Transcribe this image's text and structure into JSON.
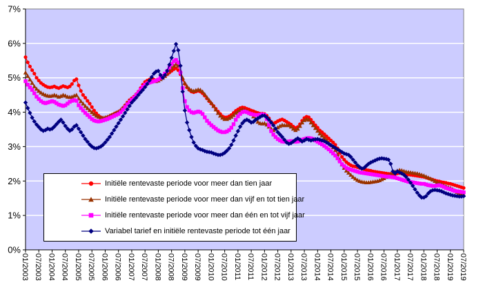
{
  "chart_data": {
    "type": "line",
    "title": "",
    "ylabel": "",
    "xlabel": "",
    "ylim": [
      0,
      7
    ],
    "grid": "horizontal-white",
    "plot_bg_color": "#CCCCFF",
    "grid_color": "#FFFFFF",
    "axis_color": "#000000",
    "border_color": "#808080",
    "legend_position": "bottom-left-overlay",
    "x_unit": "month",
    "x_start": "01/2003",
    "x_end": "07/2019",
    "y_tick_labels": [
      "0%",
      "1%",
      "2%",
      "3%",
      "4%",
      "5%",
      "6%",
      "7%"
    ],
    "x_tick_labels": [
      "01/2003",
      "07/2003",
      "01/2004",
      "07/2004",
      "01/2005",
      "07/2005",
      "01/2006",
      "07/2006",
      "01/2007",
      "07/2007",
      "01/2008",
      "07/2008",
      "01/2009",
      "07/2009",
      "01/2010",
      "07/2010",
      "01/2011",
      "07/2011",
      "01/2012",
      "07/2012",
      "01/2013",
      "07/2013",
      "01/2014",
      "07/2014",
      "01/2015",
      "07/2015",
      "01/2016",
      "07/2016",
      "01/2017",
      "07/2017",
      "01/2018",
      "07/2018",
      "01/2019",
      "07/2019"
    ],
    "series": [
      {
        "name": "Initiële rentevaste periode voor meer dan tien jaar",
        "color": "#FF0000",
        "marker": "circle",
        "values": [
          5.6,
          5.45,
          5.33,
          5.22,
          5.12,
          5.0,
          4.92,
          4.85,
          4.8,
          4.76,
          4.73,
          4.72,
          4.73,
          4.75,
          4.72,
          4.7,
          4.73,
          4.76,
          4.74,
          4.72,
          4.75,
          4.82,
          4.92,
          4.96,
          4.78,
          4.62,
          4.5,
          4.42,
          4.33,
          4.25,
          4.15,
          4.05,
          3.97,
          3.9,
          3.85,
          3.82,
          3.83,
          3.85,
          3.88,
          3.92,
          3.95,
          3.98,
          4.01,
          4.05,
          4.12,
          4.2,
          4.28,
          4.35,
          4.4,
          4.45,
          4.52,
          4.6,
          4.7,
          4.8,
          4.88,
          4.92,
          4.95,
          4.97,
          4.95,
          4.93,
          4.95,
          5.0,
          5.02,
          5.05,
          5.1,
          5.15,
          5.2,
          5.25,
          5.28,
          5.22,
          5.1,
          4.95,
          4.82,
          4.72,
          4.65,
          4.6,
          4.58,
          4.6,
          4.62,
          4.6,
          4.55,
          4.48,
          4.4,
          4.32,
          4.25,
          4.18,
          4.1,
          4.02,
          3.95,
          3.88,
          3.85,
          3.85,
          3.88,
          3.92,
          3.98,
          4.04,
          4.08,
          4.12,
          4.14,
          4.13,
          4.1,
          4.08,
          4.05,
          4.03,
          4.0,
          3.98,
          3.96,
          3.96,
          3.95,
          3.9,
          3.82,
          3.72,
          3.67,
          3.7,
          3.74,
          3.77,
          3.79,
          3.76,
          3.72,
          3.68,
          3.64,
          3.58,
          3.54,
          3.57,
          3.65,
          3.75,
          3.83,
          3.87,
          3.85,
          3.78,
          3.7,
          3.62,
          3.55,
          3.47,
          3.42,
          3.36,
          3.3,
          3.24,
          3.18,
          3.12,
          3.05,
          2.95,
          2.82,
          2.7,
          2.62,
          2.55,
          2.5,
          2.46,
          2.43,
          2.42,
          2.4,
          2.38,
          2.36,
          2.34,
          2.32,
          2.31,
          2.3,
          2.28,
          2.27,
          2.26,
          2.25,
          2.24,
          2.23,
          2.22,
          2.21,
          2.21,
          2.2,
          2.2,
          2.22,
          2.23,
          2.22,
          2.21,
          2.2,
          2.19,
          2.18,
          2.17,
          2.16,
          2.15,
          2.14,
          2.13,
          2.12,
          2.1,
          2.08,
          2.06,
          2.04,
          2.02,
          2.0,
          1.99,
          1.97,
          1.96,
          1.95,
          1.93,
          1.92,
          1.9,
          1.88,
          1.86,
          1.84,
          1.82,
          1.8
        ]
      },
      {
        "name": "Initiële rentevaste periode voor meer dan vijf en tot tien jaar",
        "color": "#993300",
        "marker": "triangle",
        "values": [
          5.15,
          5.05,
          4.95,
          4.85,
          4.75,
          4.68,
          4.62,
          4.57,
          4.53,
          4.5,
          4.48,
          4.47,
          4.48,
          4.5,
          4.48,
          4.45,
          4.47,
          4.5,
          4.48,
          4.45,
          4.44,
          4.45,
          4.48,
          4.5,
          4.4,
          4.32,
          4.25,
          4.18,
          4.12,
          4.06,
          4.0,
          3.95,
          3.9,
          3.87,
          3.85,
          3.84,
          3.85,
          3.87,
          3.9,
          3.93,
          3.96,
          3.99,
          4.02,
          4.07,
          4.13,
          4.2,
          4.27,
          4.33,
          4.38,
          4.43,
          4.5,
          4.58,
          4.66,
          4.74,
          4.8,
          4.85,
          4.88,
          4.9,
          4.9,
          4.9,
          4.92,
          4.96,
          5.0,
          5.05,
          5.12,
          5.2,
          5.28,
          5.35,
          5.4,
          5.35,
          5.2,
          5.0,
          4.85,
          4.75,
          4.68,
          4.64,
          4.62,
          4.64,
          4.66,
          4.65,
          4.6,
          4.52,
          4.43,
          4.35,
          4.27,
          4.18,
          4.08,
          3.98,
          3.9,
          3.84,
          3.8,
          3.8,
          3.83,
          3.87,
          3.92,
          3.98,
          4.02,
          4.06,
          4.08,
          4.07,
          4.04,
          4.0,
          3.95,
          3.88,
          3.8,
          3.72,
          3.68,
          3.67,
          3.68,
          3.64,
          3.58,
          3.52,
          3.48,
          3.52,
          3.56,
          3.6,
          3.63,
          3.62,
          3.62,
          3.62,
          3.58,
          3.52,
          3.48,
          3.52,
          3.6,
          3.7,
          3.77,
          3.8,
          3.78,
          3.7,
          3.62,
          3.54,
          3.46,
          3.38,
          3.32,
          3.26,
          3.2,
          3.12,
          3.05,
          2.98,
          2.9,
          2.78,
          2.62,
          2.48,
          2.38,
          2.3,
          2.24,
          2.18,
          2.12,
          2.07,
          2.03,
          2.0,
          1.98,
          1.97,
          1.96,
          1.96,
          1.97,
          1.98,
          1.99,
          2.0,
          2.02,
          2.05,
          2.08,
          2.12,
          2.16,
          2.2,
          2.24,
          2.27,
          2.3,
          2.32,
          2.31,
          2.29,
          2.27,
          2.26,
          2.25,
          2.24,
          2.23,
          2.22,
          2.2,
          2.18,
          2.16,
          2.13,
          2.1,
          2.07,
          2.04,
          2.0,
          1.97,
          1.94,
          1.91,
          1.88,
          1.85,
          1.82,
          1.8,
          1.76,
          1.72,
          1.68,
          1.65,
          1.62,
          1.6
        ]
      },
      {
        "name": "Initiële rentevaste periode voor meer dan één en tot vijf jaar",
        "color": "#FF00FF",
        "marker": "square",
        "values": [
          4.9,
          4.8,
          4.72,
          4.65,
          4.55,
          4.45,
          4.38,
          4.32,
          4.28,
          4.26,
          4.28,
          4.3,
          4.32,
          4.3,
          4.26,
          4.22,
          4.2,
          4.18,
          4.2,
          4.25,
          4.3,
          4.33,
          4.35,
          4.33,
          4.2,
          4.12,
          4.05,
          3.98,
          3.92,
          3.86,
          3.8,
          3.76,
          3.74,
          3.73,
          3.74,
          3.76,
          3.78,
          3.8,
          3.83,
          3.86,
          3.89,
          3.92,
          3.95,
          4.0,
          4.07,
          4.15,
          4.23,
          4.3,
          4.36,
          4.42,
          4.5,
          4.58,
          4.66,
          4.74,
          4.8,
          4.84,
          4.86,
          4.88,
          4.9,
          4.92,
          4.95,
          5.0,
          5.05,
          5.12,
          5.2,
          5.3,
          5.4,
          5.48,
          5.52,
          5.45,
          5.15,
          4.7,
          4.32,
          4.15,
          4.05,
          4.0,
          3.98,
          4.0,
          4.02,
          4.0,
          3.95,
          3.85,
          3.75,
          3.68,
          3.62,
          3.57,
          3.52,
          3.47,
          3.44,
          3.42,
          3.42,
          3.44,
          3.48,
          3.55,
          3.65,
          3.78,
          3.88,
          3.95,
          4.0,
          4.02,
          4.0,
          3.97,
          3.95,
          3.93,
          3.92,
          3.92,
          3.93,
          3.94,
          3.92,
          3.8,
          3.62,
          3.45,
          3.35,
          3.28,
          3.22,
          3.18,
          3.15,
          3.14,
          3.14,
          3.15,
          3.16,
          3.15,
          3.14,
          3.15,
          3.17,
          3.2,
          3.22,
          3.24,
          3.25,
          3.24,
          3.22,
          3.18,
          3.14,
          3.1,
          3.06,
          3.02,
          2.97,
          2.92,
          2.86,
          2.8,
          2.74,
          2.66,
          2.57,
          2.49,
          2.43,
          2.38,
          2.35,
          2.33,
          2.31,
          2.29,
          2.27,
          2.25,
          2.24,
          2.23,
          2.22,
          2.21,
          2.2,
          2.19,
          2.18,
          2.17,
          2.16,
          2.15,
          2.14,
          2.13,
          2.13,
          2.12,
          2.11,
          2.1,
          2.08,
          2.06,
          2.04,
          2.02,
          2.0,
          1.98,
          1.97,
          1.96,
          1.95,
          1.94,
          1.93,
          1.92,
          1.92,
          1.9,
          1.88,
          1.87,
          1.86,
          1.86,
          1.87,
          1.88,
          1.86,
          1.83,
          1.8,
          1.78,
          1.76,
          1.73,
          1.71,
          1.7,
          1.69,
          1.68,
          1.67
        ]
      },
      {
        "name": "Variabel tarief en initiële rentevaste periode tot één jaar",
        "color": "#000080",
        "marker": "diamond",
        "values": [
          4.28,
          4.12,
          3.98,
          3.84,
          3.73,
          3.64,
          3.57,
          3.5,
          3.46,
          3.48,
          3.52,
          3.5,
          3.52,
          3.58,
          3.65,
          3.72,
          3.78,
          3.7,
          3.6,
          3.52,
          3.46,
          3.5,
          3.58,
          3.62,
          3.52,
          3.42,
          3.32,
          3.22,
          3.14,
          3.06,
          3.0,
          2.96,
          2.95,
          2.97,
          3.0,
          3.05,
          3.12,
          3.2,
          3.28,
          3.38,
          3.48,
          3.58,
          3.68,
          3.78,
          3.88,
          3.98,
          4.08,
          4.18,
          4.28,
          4.35,
          4.42,
          4.5,
          4.58,
          4.65,
          4.73,
          4.82,
          4.92,
          5.02,
          5.12,
          5.18,
          5.2,
          5.08,
          5.0,
          5.08,
          5.2,
          5.38,
          5.58,
          5.78,
          5.98,
          5.8,
          5.35,
          4.6,
          4.05,
          3.7,
          3.48,
          3.28,
          3.12,
          3.02,
          2.95,
          2.92,
          2.9,
          2.87,
          2.85,
          2.84,
          2.83,
          2.8,
          2.78,
          2.76,
          2.76,
          2.78,
          2.82,
          2.88,
          2.95,
          3.05,
          3.18,
          3.32,
          3.45,
          3.58,
          3.68,
          3.75,
          3.78,
          3.75,
          3.7,
          3.72,
          3.78,
          3.82,
          3.86,
          3.9,
          3.9,
          3.85,
          3.78,
          3.7,
          3.62,
          3.52,
          3.42,
          3.35,
          3.28,
          3.2,
          3.12,
          3.08,
          3.1,
          3.15,
          3.2,
          3.24,
          3.2,
          3.15,
          3.18,
          3.22,
          3.2,
          3.18,
          3.2,
          3.21,
          3.22,
          3.2,
          3.18,
          3.16,
          3.12,
          3.08,
          3.04,
          3.0,
          2.96,
          2.92,
          2.88,
          2.84,
          2.8,
          2.78,
          2.76,
          2.7,
          2.62,
          2.54,
          2.46,
          2.4,
          2.36,
          2.38,
          2.44,
          2.5,
          2.54,
          2.57,
          2.6,
          2.63,
          2.65,
          2.66,
          2.65,
          2.64,
          2.62,
          2.5,
          2.28,
          2.22,
          2.28,
          2.25,
          2.22,
          2.18,
          2.12,
          2.04,
          1.95,
          1.86,
          1.76,
          1.66,
          1.58,
          1.52,
          1.52,
          1.56,
          1.64,
          1.7,
          1.73,
          1.74,
          1.73,
          1.72,
          1.7,
          1.67,
          1.64,
          1.62,
          1.6,
          1.58,
          1.57,
          1.56,
          1.55,
          1.55,
          1.56
        ]
      }
    ]
  }
}
